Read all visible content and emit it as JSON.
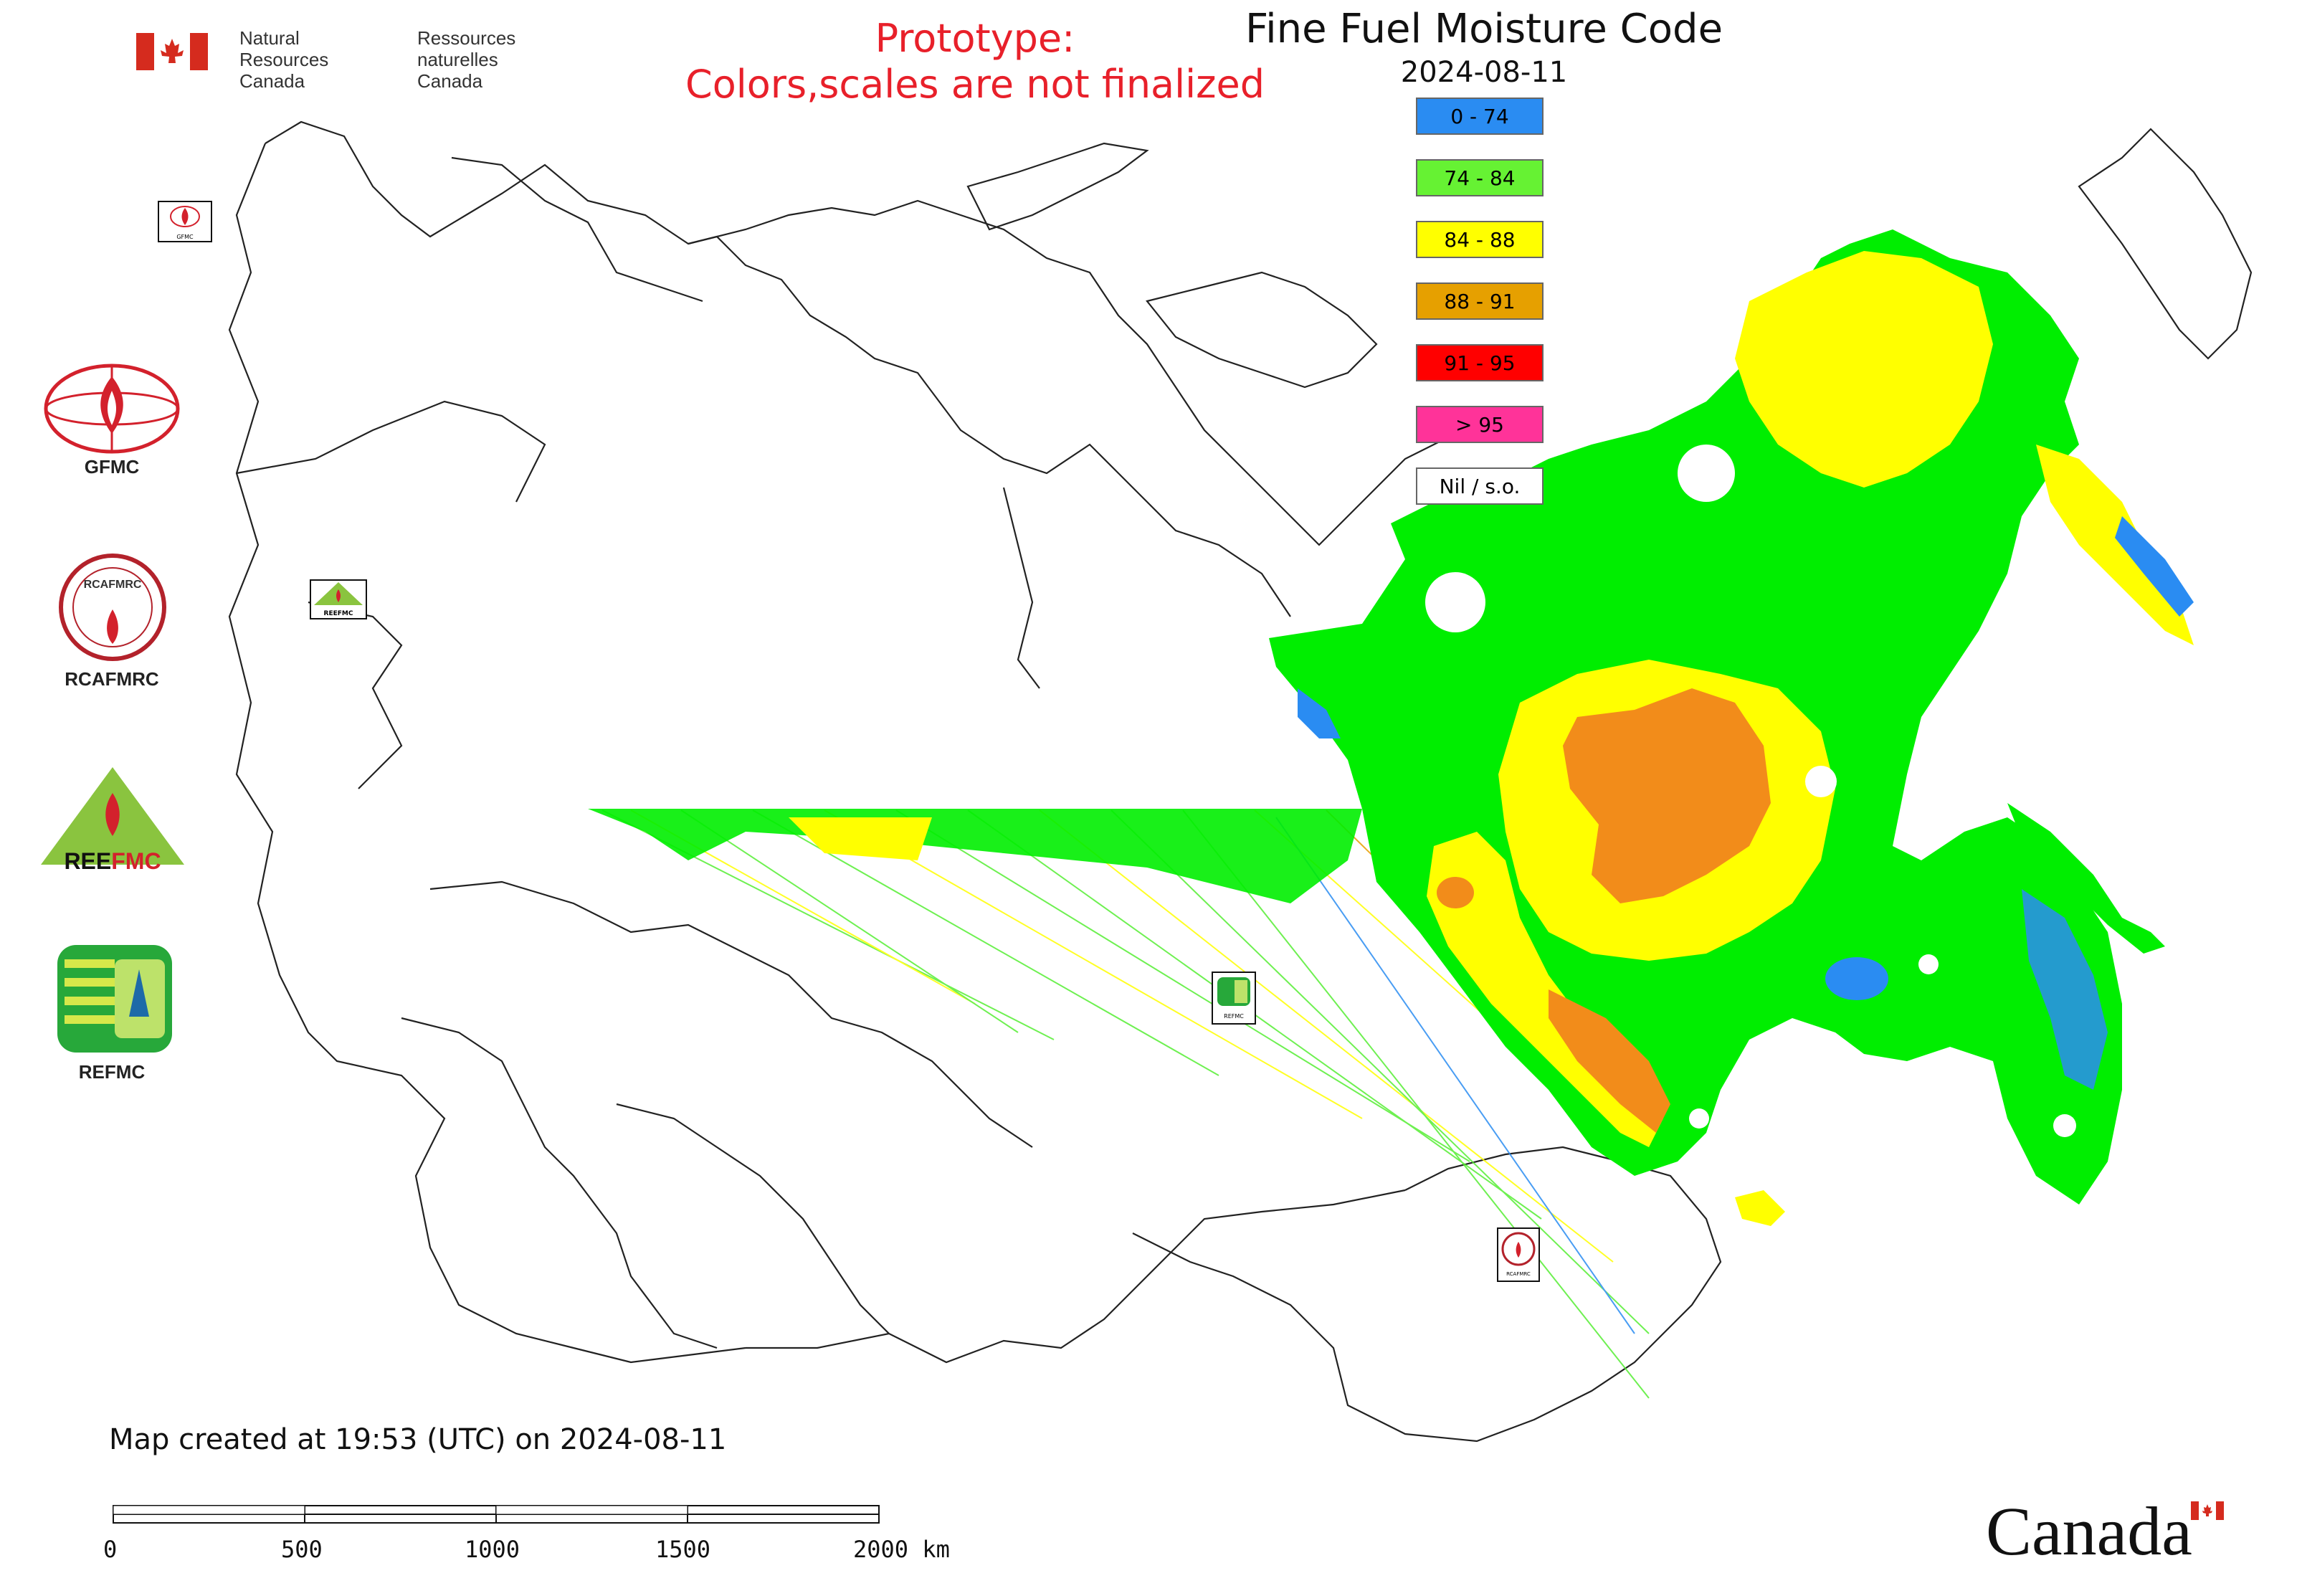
{
  "header": {
    "title": "Fine Fuel Moisture Code",
    "date": "2024-08-11",
    "prototype_line1": "Prototype:",
    "prototype_line2": "Colors,scales are not finalized"
  },
  "gov": {
    "en_line1": "Natural Resources",
    "en_line2": "Canada",
    "fr_line1": "Ressources naturelles",
    "fr_line2": "Canada",
    "wordmark": "Canada"
  },
  "legend": [
    {
      "label": "0 - 74",
      "color": "#2a8cf2"
    },
    {
      "label": "74 - 84",
      "color": "#66f233"
    },
    {
      "label": "84 - 88",
      "color": "#ffff00"
    },
    {
      "label": "88 - 91",
      "color": "#e6a000"
    },
    {
      "label": "91 - 95",
      "color": "#ff0000"
    },
    {
      "label": "> 95",
      "color": "#ff3399"
    },
    {
      "label": "Nil / s.o.",
      "color": "#ffffff"
    }
  ],
  "agencies": [
    {
      "label": "GFMC"
    },
    {
      "label": "RCAFMRC"
    },
    {
      "label": "REEFMC"
    },
    {
      "label": "REFMC"
    }
  ],
  "map_markers": [
    {
      "label": "GFMC"
    },
    {
      "label": "REEFMC"
    },
    {
      "label": "REFMC"
    },
    {
      "label": "RCAFMRC"
    }
  ],
  "footer": {
    "created": "Map created at 19:53 (UTC) on 2024-08-11",
    "scale_ticks": [
      "0",
      "500",
      "1000",
      "1500",
      "2000 km"
    ]
  },
  "icons": {
    "flag": "canada-flag-icon",
    "wordmark_flag": "canada-wordmark-flag-icon"
  }
}
